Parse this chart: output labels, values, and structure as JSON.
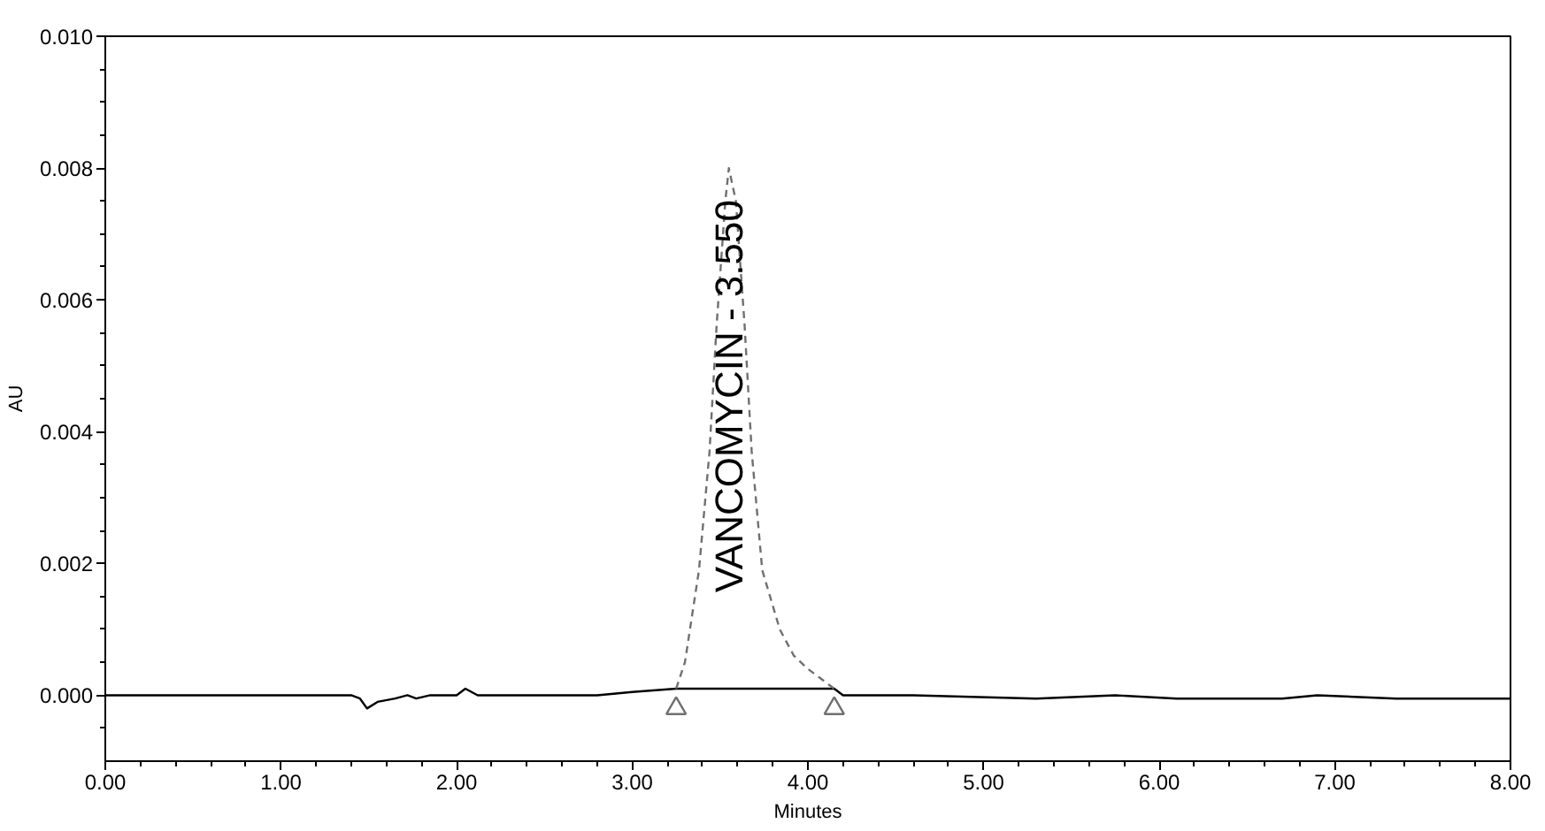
{
  "chart_data": {
    "type": "line",
    "xlabel": "Minutes",
    "ylabel": "AU",
    "xlim": [
      0,
      8
    ],
    "ylim": [
      -0.001,
      0.01
    ],
    "xticks": [
      {
        "value": 0,
        "label": "0.00"
      },
      {
        "value": 0.2,
        "label": null
      },
      {
        "value": 0.4,
        "label": null
      },
      {
        "value": 0.6,
        "label": null
      },
      {
        "value": 0.8,
        "label": null
      },
      {
        "value": 1,
        "label": "1.00"
      },
      {
        "value": 1.2,
        "label": null
      },
      {
        "value": 1.4,
        "label": null
      },
      {
        "value": 1.6,
        "label": null
      },
      {
        "value": 1.8,
        "label": null
      },
      {
        "value": 2,
        "label": "2.00"
      },
      {
        "value": 2.2,
        "label": null
      },
      {
        "value": 2.4,
        "label": null
      },
      {
        "value": 2.6,
        "label": null
      },
      {
        "value": 2.8,
        "label": null
      },
      {
        "value": 3,
        "label": "3.00"
      },
      {
        "value": 3.2,
        "label": null
      },
      {
        "value": 3.4,
        "label": null
      },
      {
        "value": 3.6,
        "label": null
      },
      {
        "value": 3.8,
        "label": null
      },
      {
        "value": 4,
        "label": "4.00"
      },
      {
        "value": 4.2,
        "label": null
      },
      {
        "value": 4.4,
        "label": null
      },
      {
        "value": 4.6,
        "label": null
      },
      {
        "value": 4.8,
        "label": null
      },
      {
        "value": 5,
        "label": "5.00"
      },
      {
        "value": 5.2,
        "label": null
      },
      {
        "value": 5.4,
        "label": null
      },
      {
        "value": 5.6,
        "label": null
      },
      {
        "value": 5.8,
        "label": null
      },
      {
        "value": 6,
        "label": "6.00"
      },
      {
        "value": 6.2,
        "label": null
      },
      {
        "value": 6.4,
        "label": null
      },
      {
        "value": 6.6,
        "label": null
      },
      {
        "value": 6.8,
        "label": null
      },
      {
        "value": 7,
        "label": "7.00"
      },
      {
        "value": 7.2,
        "label": null
      },
      {
        "value": 7.4,
        "label": null
      },
      {
        "value": 7.6,
        "label": null
      },
      {
        "value": 7.8,
        "label": null
      },
      {
        "value": 8,
        "label": "8.00"
      }
    ],
    "yticks": [
      {
        "value": -0.0005,
        "label": null
      },
      {
        "value": 0,
        "label": "0.000"
      },
      {
        "value": 0.0005,
        "label": null
      },
      {
        "value": 0.001,
        "label": null
      },
      {
        "value": 0.0015,
        "label": null
      },
      {
        "value": 0.002,
        "label": "0.002"
      },
      {
        "value": 0.0025,
        "label": null
      },
      {
        "value": 0.003,
        "label": null
      },
      {
        "value": 0.0035,
        "label": null
      },
      {
        "value": 0.004,
        "label": "0.004"
      },
      {
        "value": 0.0045,
        "label": null
      },
      {
        "value": 0.005,
        "label": null
      },
      {
        "value": 0.0055,
        "label": null
      },
      {
        "value": 0.006,
        "label": "0.006"
      },
      {
        "value": 0.0065,
        "label": null
      },
      {
        "value": 0.007,
        "label": null
      },
      {
        "value": 0.0075,
        "label": null
      },
      {
        "value": 0.008,
        "label": "0.008"
      },
      {
        "value": 0.0085,
        "label": null
      },
      {
        "value": 0.009,
        "label": null
      },
      {
        "value": 0.0095,
        "label": null
      },
      {
        "value": 0.01,
        "label": "0.010"
      }
    ],
    "series": [
      {
        "color": "#000000",
        "line_style": "solid",
        "x": [
          0,
          1.4,
          1.45,
          1.49,
          1.55,
          1.65,
          1.72,
          1.77,
          1.85,
          2.0,
          2.05,
          2.12,
          2.8,
          3.0,
          3.25,
          4.15,
          4.2,
          4.6,
          5.3,
          5.75,
          6.1,
          6.7,
          6.9,
          7.35,
          8.0
        ],
        "values": [
          0,
          0,
          -5e-05,
          -0.0002,
          -0.0001,
          -5e-05,
          0,
          -5e-05,
          0,
          0,
          0.0001,
          0,
          0,
          5e-05,
          0.0001,
          0.0001,
          0,
          0,
          -5e-05,
          0,
          -5e-05,
          -5e-05,
          0,
          -5e-05,
          -5e-05
        ]
      },
      {
        "color": "#707070",
        "line_style": "dashed",
        "x": [
          3.25,
          3.3,
          3.38,
          3.44,
          3.48,
          3.53,
          3.55,
          3.59,
          3.64,
          3.68,
          3.74,
          3.84,
          3.92,
          4.0,
          4.15
        ],
        "values": [
          0.0001,
          0.0005,
          0.0019,
          0.0037,
          0.0056,
          0.0075,
          0.008,
          0.0075,
          0.0056,
          0.0037,
          0.0019,
          0.001,
          0.0006,
          0.0004,
          0.0001
        ]
      },
      {
        "type": "scatter",
        "color": "#707070",
        "marker": "triangle",
        "x": [
          3.25,
          4.15
        ],
        "values": [
          -0.0002,
          -0.0002
        ]
      }
    ],
    "annotations": [
      {
        "text": "VANCOMYCIN - 3.550",
        "x": 3.55,
        "y": 0.008
      }
    ]
  }
}
